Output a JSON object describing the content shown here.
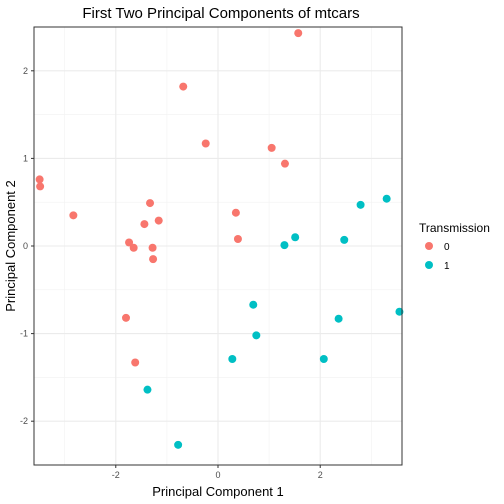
{
  "chart_data": {
    "type": "scatter",
    "title": "First Two Principal Components of mtcars",
    "xlabel": "Principal Component 1",
    "ylabel": "Principal Component 2",
    "xlim": [
      -3.6,
      3.6
    ],
    "ylim": [
      -2.5,
      2.5
    ],
    "x_ticks": [
      -2,
      0,
      2
    ],
    "y_ticks": [
      -2,
      -1,
      0,
      1,
      2
    ],
    "grid": true,
    "legend": {
      "title": "Transmission",
      "position": "right"
    },
    "series": [
      {
        "name": "0",
        "color": "#F8766D",
        "points": [
          {
            "x": 1.57,
            "y": 2.43
          },
          {
            "x": -0.68,
            "y": 1.82
          },
          {
            "x": -0.24,
            "y": 1.17
          },
          {
            "x": 1.05,
            "y": 1.12
          },
          {
            "x": 1.31,
            "y": 0.94
          },
          {
            "x": -3.49,
            "y": 0.76
          },
          {
            "x": -3.48,
            "y": 0.68
          },
          {
            "x": -2.83,
            "y": 0.35
          },
          {
            "x": -1.33,
            "y": 0.49
          },
          {
            "x": 0.35,
            "y": 0.38
          },
          {
            "x": -1.16,
            "y": 0.29
          },
          {
            "x": -1.44,
            "y": 0.25
          },
          {
            "x": 0.39,
            "y": 0.08
          },
          {
            "x": -1.74,
            "y": 0.04
          },
          {
            "x": -1.65,
            "y": -0.02
          },
          {
            "x": -1.28,
            "y": -0.02
          },
          {
            "x": -1.27,
            "y": -0.15
          },
          {
            "x": -1.8,
            "y": -0.82
          },
          {
            "x": -1.62,
            "y": -1.33
          }
        ]
      },
      {
        "name": "1",
        "color": "#00BFC4",
        "points": [
          {
            "x": 3.3,
            "y": 0.54
          },
          {
            "x": 2.79,
            "y": 0.47
          },
          {
            "x": 1.51,
            "y": 0.1
          },
          {
            "x": 2.47,
            "y": 0.07
          },
          {
            "x": 1.3,
            "y": 0.01
          },
          {
            "x": 3.55,
            "y": -0.75
          },
          {
            "x": 0.69,
            "y": -0.67
          },
          {
            "x": 2.36,
            "y": -0.83
          },
          {
            "x": 0.75,
            "y": -1.02
          },
          {
            "x": 0.28,
            "y": -1.29
          },
          {
            "x": 2.07,
            "y": -1.29
          },
          {
            "x": -1.38,
            "y": -1.64
          },
          {
            "x": -0.78,
            "y": -2.27
          }
        ]
      }
    ]
  }
}
